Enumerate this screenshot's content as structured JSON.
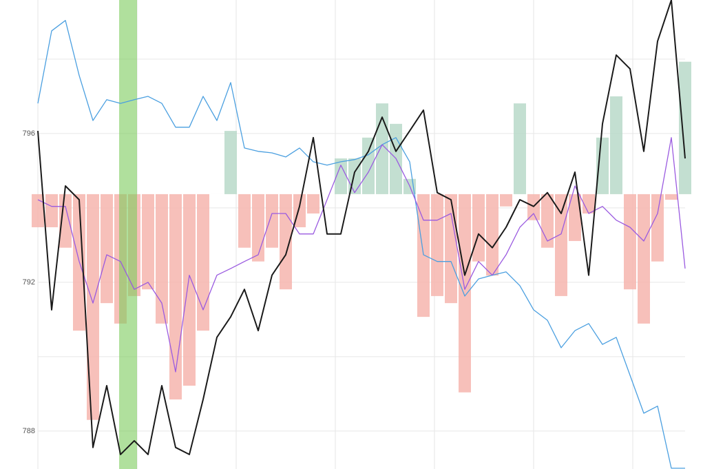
{
  "chart_data": {
    "type": "line",
    "xlim": [
      0,
      47
    ],
    "ylim": [
      786.98,
      799.59
    ],
    "yticks": [
      788,
      792,
      796
    ],
    "ygrid": [
      788,
      790,
      792,
      794,
      796,
      798
    ],
    "xgrid": [
      0,
      7.2,
      14.4,
      21.6,
      28.8,
      36,
      43.2
    ],
    "grid": true,
    "highlight": {
      "from": 5.9,
      "to": 7.2,
      "color": "#7ccc5c"
    },
    "histogram": {
      "baseline": 794.37,
      "up_color": "#b9d9c9",
      "down_color": "#f6b5ae",
      "values": [
        -0.89,
        -0.89,
        -1.44,
        -3.67,
        -6.07,
        -2.93,
        -3.48,
        -2.74,
        -2.56,
        -3.48,
        -5.52,
        -5.15,
        -3.67,
        0,
        1.7,
        -1.44,
        -1.81,
        -1.44,
        -2.56,
        -0.89,
        -0.52,
        0,
        0.96,
        0.96,
        1.52,
        2.44,
        1.89,
        0.41,
        -3.3,
        -2.74,
        -2.93,
        -5.33,
        -1.81,
        -2.19,
        -0.33,
        2.44,
        -0.7,
        -1.44,
        -2.74,
        -1.26,
        -0.52,
        1.52,
        2.63,
        -2.56,
        -3.48,
        -1.81,
        -0.15,
        3.56
      ]
    },
    "series": [
      {
        "color": "#4a9fe0",
        "values": [
          796.81,
          798.76,
          799.04,
          797.56,
          796.35,
          796.91,
          796.81,
          796.91,
          797.0,
          796.81,
          796.17,
          796.17,
          797.0,
          796.35,
          797.37,
          795.61,
          795.52,
          795.48,
          795.37,
          795.61,
          795.24,
          795.15,
          795.24,
          795.3,
          795.43,
          795.7,
          795.89,
          795.24,
          792.74,
          792.56,
          792.56,
          791.63,
          792.09,
          792.19,
          792.28,
          791.91,
          791.26,
          790.98,
          790.24,
          790.7,
          790.89,
          790.33,
          790.52,
          789.5,
          788.48,
          788.67,
          787.0,
          787.0
        ]
      },
      {
        "color": "#9a5ae0",
        "values": [
          794.22,
          794.04,
          794.04,
          792.56,
          791.44,
          792.74,
          792.56,
          791.81,
          792.0,
          791.44,
          789.59,
          792.19,
          791.26,
          792.19,
          792.37,
          792.56,
          792.74,
          793.85,
          793.85,
          793.3,
          793.3,
          794.22,
          795.15,
          794.41,
          794.96,
          795.7,
          795.33,
          794.59,
          793.67,
          793.67,
          793.85,
          791.81,
          792.56,
          792.19,
          792.74,
          793.48,
          793.85,
          793.11,
          793.3,
          794.59,
          793.85,
          794.04,
          793.67,
          793.48,
          793.11,
          793.85,
          795.89,
          792.37
        ]
      },
      {
        "color": "#1a1a1a",
        "values": [
          796.07,
          791.26,
          794.59,
          794.22,
          787.56,
          789.22,
          787.37,
          787.74,
          787.37,
          789.22,
          787.56,
          787.37,
          788.85,
          790.52,
          791.07,
          791.81,
          790.7,
          792.19,
          792.74,
          794.04,
          795.89,
          793.3,
          793.3,
          794.96,
          795.52,
          796.44,
          795.52,
          796.07,
          796.63,
          794.41,
          794.22,
          792.19,
          793.3,
          792.93,
          793.48,
          794.22,
          794.04,
          794.41,
          793.85,
          794.96,
          792.19,
          796.26,
          798.11,
          797.74,
          795.52,
          798.48,
          799.59,
          795.33
        ]
      }
    ]
  }
}
